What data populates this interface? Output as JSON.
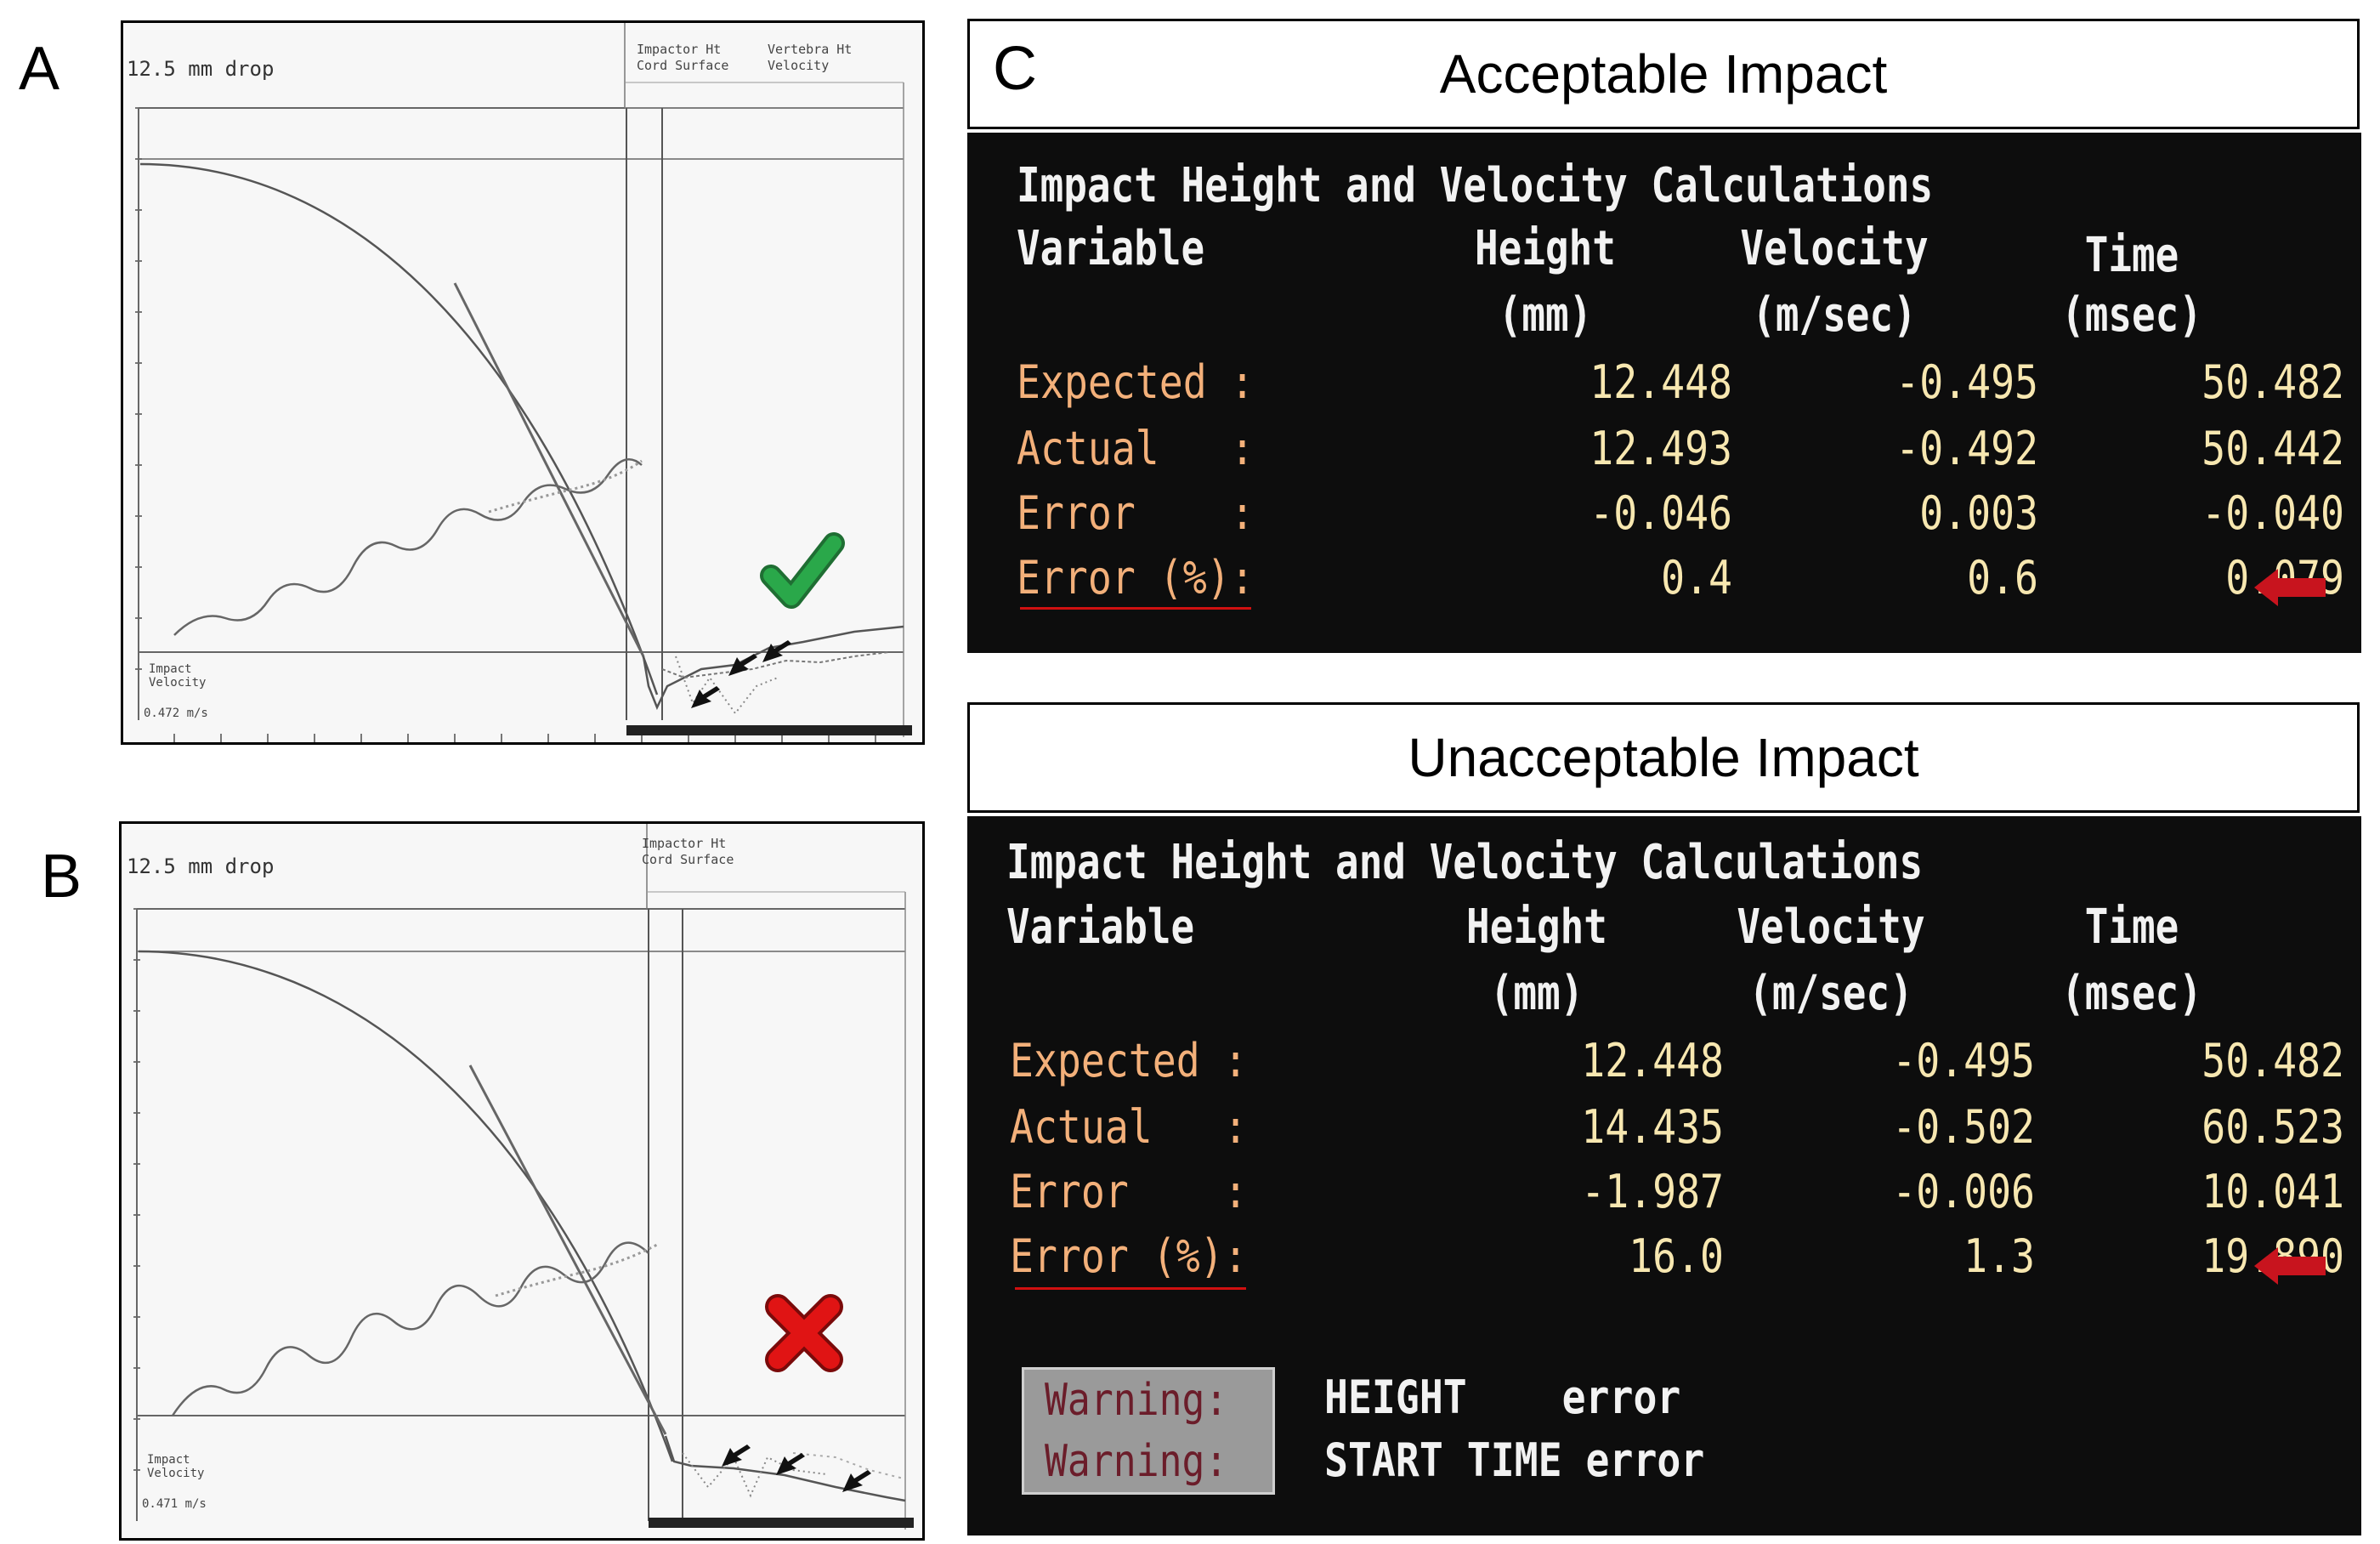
{
  "panel_letters": {
    "a": "A",
    "b": "B",
    "c": "C"
  },
  "plot_a": {
    "title": "12.5 mm drop",
    "legend": [
      "Impactor Ht",
      "Cord Surface",
      "Vertebra Ht",
      "Velocity"
    ],
    "impact_label": [
      "Impact",
      "Velocity"
    ],
    "impact_value": "0.472 m/s",
    "status_icon": "green-checkmark-icon",
    "status_color": "#2aa84a"
  },
  "plot_b": {
    "title": "12.5 mm drop",
    "legend": [
      "Impactor Ht",
      "Cord Surface"
    ],
    "impact_label": [
      "Impact",
      "Velocity"
    ],
    "impact_value": "0.471 m/s",
    "status_icon": "red-cross-icon",
    "status_color": "#e01414"
  },
  "acceptable": {
    "banner": "Acceptable Impact",
    "heading": "Impact Height and Velocity Calculations",
    "columns": {
      "variable": "Variable",
      "height": "Height",
      "velocity": "Velocity",
      "time": "Time",
      "height_unit": "(mm)",
      "velocity_unit": "(m/sec)",
      "time_unit": "(msec)"
    },
    "rows": [
      {
        "label": "Expected :",
        "height": "12.448",
        "velocity": "-0.495",
        "time": "50.482"
      },
      {
        "label": "Actual   :",
        "height": "12.493",
        "velocity": "-0.492",
        "time": "50.442"
      },
      {
        "label": "Error    :",
        "height": "-0.046",
        "velocity": "0.003",
        "time": "-0.040"
      },
      {
        "label": "Error (%):",
        "height": "0.4",
        "velocity": "0.6",
        "time": "0.079"
      }
    ],
    "arrow_icon": "red-arrow-left-icon"
  },
  "unacceptable": {
    "banner": "Unacceptable Impact",
    "heading": "Impact Height and Velocity Calculations",
    "columns": {
      "variable": "Variable",
      "height": "Height",
      "velocity": "Velocity",
      "time": "Time",
      "height_unit": "(mm)",
      "velocity_unit": "(m/sec)",
      "time_unit": "(msec)"
    },
    "rows": [
      {
        "label": "Expected :",
        "height": "12.448",
        "velocity": "-0.495",
        "time": "50.482"
      },
      {
        "label": "Actual   :",
        "height": "14.435",
        "velocity": "-0.502",
        "time": "60.523"
      },
      {
        "label": "Error    :",
        "height": "-1.987",
        "velocity": "-0.006",
        "time": "10.041"
      },
      {
        "label": "Error (%):",
        "height": "16.0",
        "velocity": "1.3",
        "time": "19.890"
      }
    ],
    "warnings": [
      {
        "tag": "Warning:",
        "message": "HEIGHT    error"
      },
      {
        "tag": "Warning:",
        "message": "START TIME error"
      }
    ],
    "arrow_icon": "red-arrow-left-icon"
  },
  "colors": {
    "screen_bg": "#0d0d0d",
    "label": "#f3b07a",
    "value": "#f7e7b0",
    "arrow": "#c8141e"
  }
}
